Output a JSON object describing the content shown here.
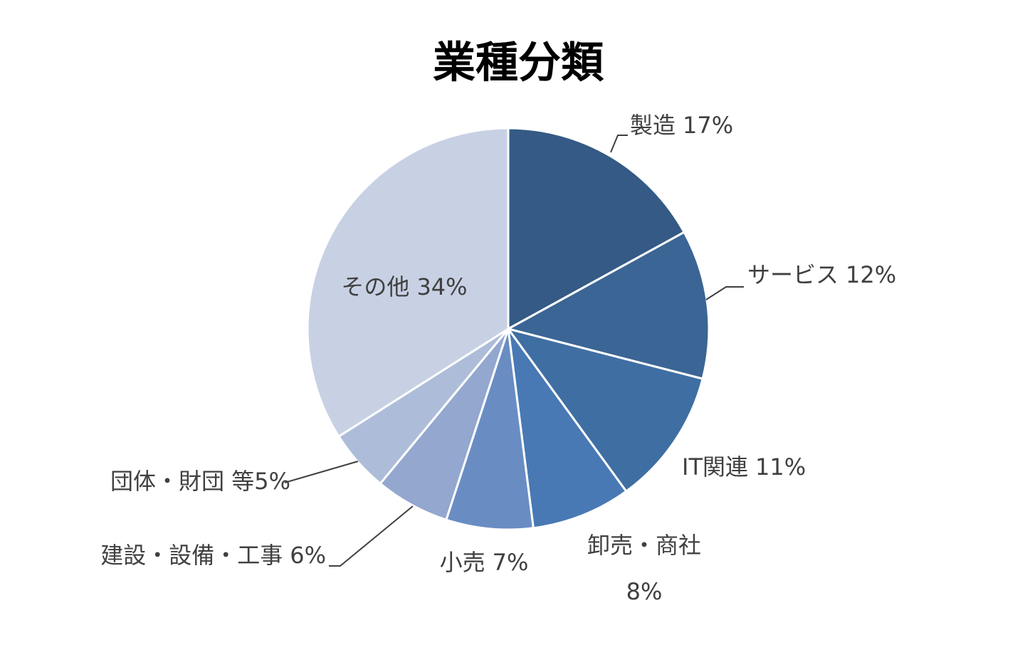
{
  "chart_data": {
    "type": "pie",
    "title": "業種分類",
    "categories": [
      "製造",
      "サービス",
      "IT関連",
      "卸売・商社",
      "小売",
      "建設・設備・工事",
      "団体・財団 等",
      "その他"
    ],
    "values": [
      17,
      12,
      11,
      8,
      7,
      6,
      5,
      34
    ],
    "value_labels": [
      "17%",
      "12%",
      "11%",
      "8%",
      "7%",
      "6%",
      "5%",
      "34%"
    ],
    "colors": [
      "#345a85",
      "#3b6594",
      "#3f6ea3",
      "#4879b4",
      "#698dc3",
      "#93a7cf",
      "#adbdd9",
      "#c8d1e4"
    ]
  }
}
